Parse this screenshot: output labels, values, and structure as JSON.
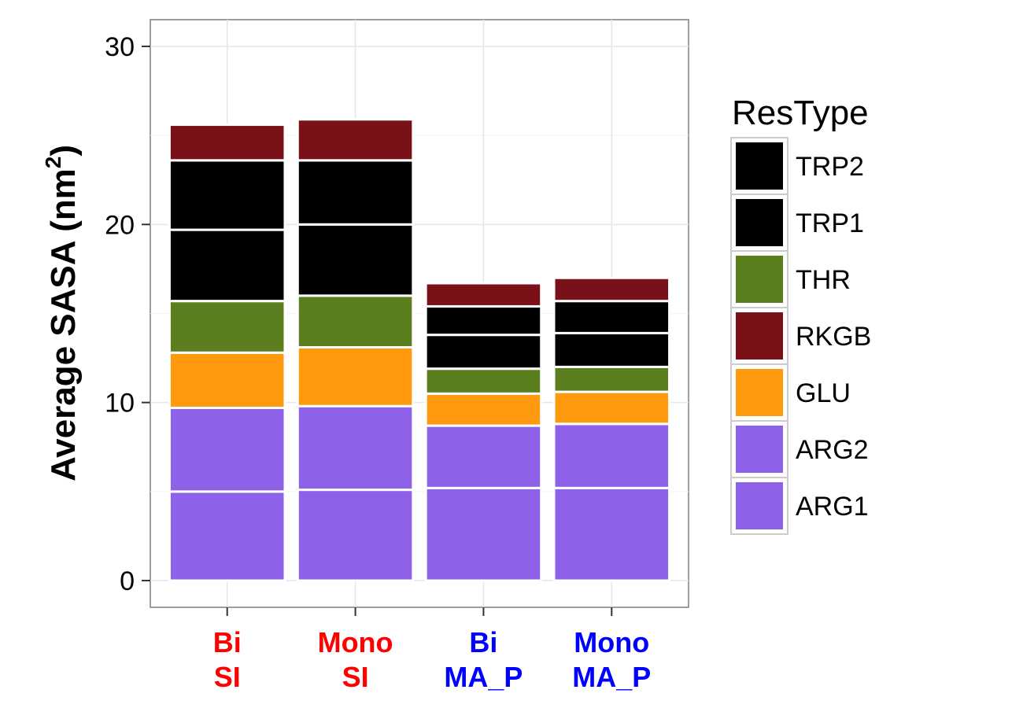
{
  "chart_data": {
    "type": "bar",
    "stacked": true,
    "title": "",
    "ylabel": "Average SASA (nm",
    "ylabel_sup": "2",
    "ylabel_close": ")",
    "xlabel": "",
    "ylim": [
      -1.5,
      31.5
    ],
    "yticks": [
      0,
      10,
      20,
      30
    ],
    "grid": true,
    "legend_position": "right",
    "legend_title": "ResType",
    "categories": [
      {
        "line1": "Bi",
        "line2": "SI",
        "color": "#FF0000"
      },
      {
        "line1": "Mono",
        "line2": "SI",
        "color": "#FF0000"
      },
      {
        "line1": "Bi",
        "line2": "MA_P",
        "color": "#0000FF"
      },
      {
        "line1": "Mono",
        "line2": "MA_P",
        "color": "#0000FF"
      }
    ],
    "series": [
      {
        "name": "ARG1",
        "color": "#8E62E8",
        "values": [
          5.0,
          5.1,
          5.2,
          5.2
        ]
      },
      {
        "name": "ARG2",
        "color": "#8E62E8",
        "values": [
          4.7,
          4.7,
          3.5,
          3.6
        ]
      },
      {
        "name": "GLU",
        "color": "#FF9A0E",
        "values": [
          3.1,
          3.3,
          1.8,
          1.8
        ]
      },
      {
        "name": "THR",
        "color": "#5B7F1E",
        "values": [
          2.9,
          2.9,
          1.4,
          1.4
        ]
      },
      {
        "name": "TRP1",
        "color": "#000000",
        "values": [
          4.0,
          4.0,
          1.9,
          1.9
        ]
      },
      {
        "name": "TRP2",
        "color": "#000000",
        "values": [
          3.9,
          3.6,
          1.6,
          1.8
        ]
      },
      {
        "name": "RKGB",
        "color": "#7B1118",
        "values": [
          2.0,
          2.3,
          1.3,
          1.3
        ]
      }
    ],
    "legend_order": [
      "TRP2",
      "TRP1",
      "THR",
      "RKGB",
      "GLU",
      "ARG2",
      "ARG1"
    ]
  }
}
